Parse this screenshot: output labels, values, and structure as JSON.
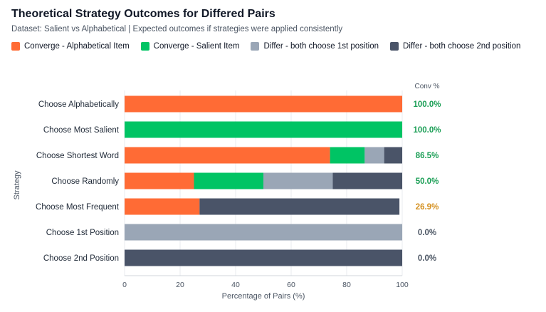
{
  "chart_data": {
    "type": "bar",
    "orientation": "horizontal",
    "stacked": true,
    "title": "Theoretical Strategy Outcomes for Differed Pairs",
    "subtitle": "Dataset: Salient vs Alphabetical | Expected outcomes if strategies were applied consistently",
    "xlabel": "Percentage of Pairs (%)",
    "ylabel": "Strategy",
    "xlim": [
      0,
      100
    ],
    "xticks": [
      0,
      20,
      40,
      60,
      80,
      100
    ],
    "grid": true,
    "legend_position": "top",
    "categories": [
      "Choose Alphabetically",
      "Choose Most Salient",
      "Choose Shortest Word",
      "Choose Randomly",
      "Choose Most Frequent",
      "Choose 1st Position",
      "Choose 2nd Position"
    ],
    "series": [
      {
        "name": "Converge - Alphabetical Item",
        "color": "#ff6b35",
        "values": [
          100,
          0,
          74,
          25,
          27,
          0,
          0
        ]
      },
      {
        "name": "Converge - Salient Item",
        "color": "#00c464",
        "values": [
          0,
          100,
          12.5,
          25,
          0,
          0,
          0
        ]
      },
      {
        "name": "Differ - both choose 1st position",
        "color": "#9aa6b6",
        "values": [
          0,
          0,
          7,
          25,
          0,
          100,
          0
        ]
      },
      {
        "name": "Differ - both choose 2nd position",
        "color": "#4a5468",
        "values": [
          0,
          0,
          6.5,
          25,
          72,
          0,
          100
        ]
      }
    ],
    "conv_header": "Conv %",
    "conv_labels": [
      "100.0%",
      "100.0%",
      "86.5%",
      "50.0%",
      "26.9%",
      "0.0%",
      "0.0%"
    ],
    "conv_colors": [
      "#1a9e55",
      "#1a9e55",
      "#1a9e55",
      "#1a9e55",
      "#d4901f",
      "#4b5563",
      "#4b5563"
    ]
  }
}
